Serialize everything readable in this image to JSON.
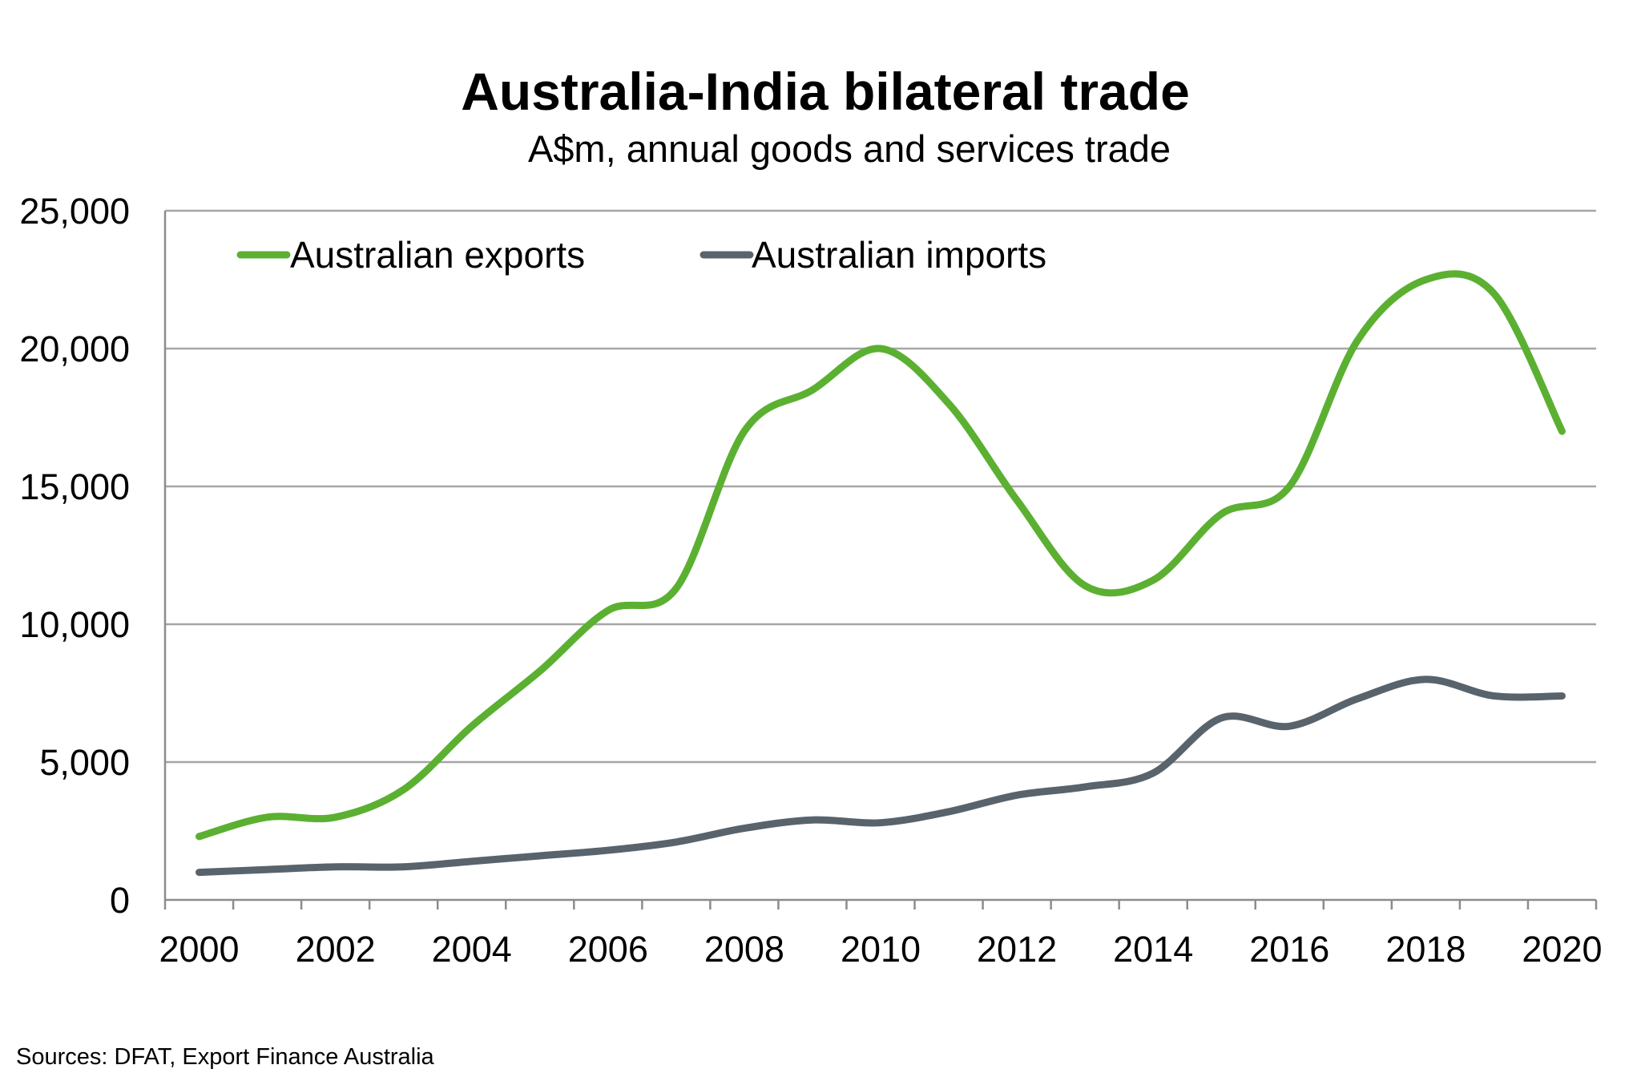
{
  "title": "Australia-India bilateral trade",
  "subtitle": "A$m, annual goods and services trade",
  "source": "Sources: DFAT, Export Finance Australia",
  "chart_data": {
    "type": "line",
    "x": [
      2000,
      2001,
      2002,
      2003,
      2004,
      2005,
      2006,
      2007,
      2008,
      2009,
      2010,
      2011,
      2012,
      2013,
      2014,
      2015,
      2016,
      2017,
      2018,
      2019,
      2020
    ],
    "x_tick_labels": [
      "2000",
      "2002",
      "2004",
      "2006",
      "2008",
      "2010",
      "2012",
      "2014",
      "2016",
      "2018",
      "2020"
    ],
    "y_tick_labels": [
      "0",
      "5,000",
      "10,000",
      "15,000",
      "20,000",
      "25,000"
    ],
    "ylim": [
      0,
      25000
    ],
    "grid": "horizontal",
    "legend_position": "top-left",
    "series": [
      {
        "name": "Australian exports",
        "color": "#5bb031",
        "values": [
          2300,
          3000,
          3000,
          4000,
          6300,
          8300,
          10500,
          11300,
          17000,
          18500,
          20000,
          18000,
          14500,
          11400,
          11600,
          14000,
          15000,
          20300,
          22500,
          22000,
          17000
        ]
      },
      {
        "name": "Australian imports",
        "color": "#59636b",
        "values": [
          1000,
          1100,
          1200,
          1200,
          1400,
          1600,
          1800,
          2100,
          2600,
          2900,
          2800,
          3200,
          3800,
          4100,
          4600,
          6600,
          6300,
          7300,
          8000,
          7400,
          7400
        ]
      }
    ]
  }
}
